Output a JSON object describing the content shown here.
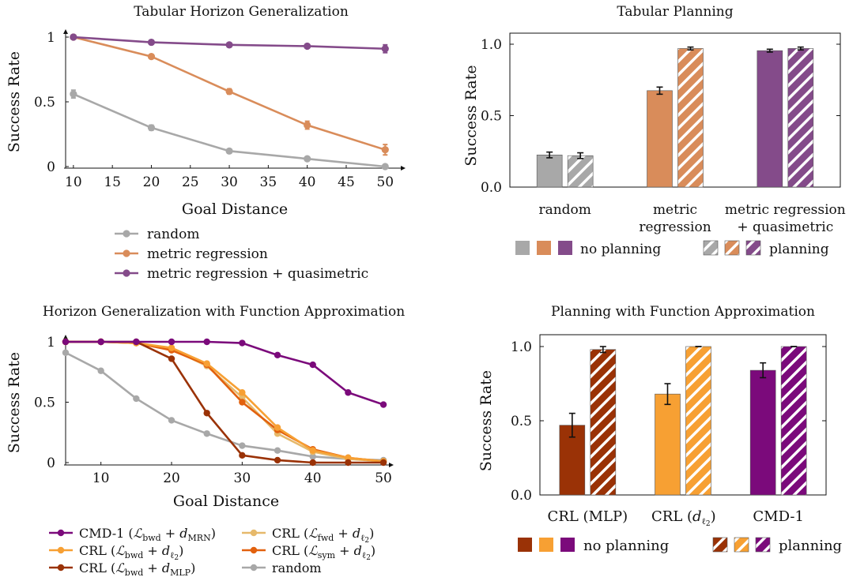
{
  "colors": {
    "gray": "#a8a8a8",
    "tan": "#d98c5a",
    "purple": "#844b8a",
    "cmd": "#7b0a7b",
    "crl_bwd_l2": "#f7a033",
    "crl_bwd_mlp": "#9a3206",
    "crl_fwd_l2": "#e6b96b",
    "crl_sym_l2": "#e2610e",
    "random2": "#a8a8a8"
  },
  "chart_data": [
    {
      "type": "line",
      "title": "Tabular Horizon Generalization",
      "xlabel": "Goal Distance",
      "ylabel": "Success Rate",
      "xlim": [
        9,
        52
      ],
      "ylim": [
        0,
        1
      ],
      "xticks": [
        "10",
        "15",
        "20",
        "25",
        "30",
        "35",
        "40",
        "45",
        "50"
      ],
      "yticks": [
        "0",
        "0.5",
        "1"
      ],
      "x": [
        10,
        20,
        30,
        40,
        50
      ],
      "series": [
        {
          "name": "random",
          "values": [
            0.56,
            0.3,
            0.12,
            0.06,
            0.0
          ],
          "err": [
            0.03,
            0.02,
            0.01,
            0.01,
            0.01
          ],
          "color_key": "gray"
        },
        {
          "name": "metric regression",
          "values": [
            1.0,
            0.85,
            0.58,
            0.32,
            0.13
          ],
          "err": [
            0.0,
            0.015,
            0.02,
            0.03,
            0.04
          ],
          "color_key": "tan"
        },
        {
          "name": "metric regression + quasimetric",
          "values": [
            1.0,
            0.96,
            0.94,
            0.93,
            0.91
          ],
          "err": [
            0.0,
            0.01,
            0.01,
            0.01,
            0.03
          ],
          "color_key": "purple"
        }
      ]
    },
    {
      "type": "bar",
      "title": "Tabular Planning",
      "ylabel": "Success Rate",
      "ylim": [
        0,
        1.0
      ],
      "yticks": [
        "0.0",
        "0.5",
        "1.0"
      ],
      "categories": [
        [
          "random"
        ],
        [
          "metric",
          "regression"
        ],
        [
          "metric regression",
          "+ quasimetric"
        ]
      ],
      "series": [
        {
          "name": "no planning",
          "values": [
            0.225,
            0.675,
            0.955
          ],
          "err": [
            0.02,
            0.025,
            0.01
          ]
        },
        {
          "name": "planning",
          "values": [
            0.22,
            0.97,
            0.97
          ],
          "err": [
            0.02,
            0.01,
            0.01
          ]
        }
      ],
      "category_color_keys": [
        "gray",
        "tan",
        "purple"
      ],
      "legend": {
        "no_planning": "no planning",
        "planning": "planning"
      }
    },
    {
      "type": "line",
      "title": "Horizon Generalization with Function Approximation",
      "xlabel": "Goal Distance",
      "ylabel": "Success Rate",
      "xlim": [
        5,
        51
      ],
      "ylim": [
        0,
        1
      ],
      "xticks": [
        "10",
        "20",
        "30",
        "40",
        "50"
      ],
      "yticks": [
        "0",
        "0.5",
        "1"
      ],
      "x": [
        5,
        10,
        15,
        20,
        25,
        30,
        35,
        40,
        45,
        50
      ],
      "series": [
        {
          "name": "CMD-1",
          "values": [
            1.0,
            1.0,
            1.0,
            1.0,
            1.0,
            0.99,
            0.89,
            0.81,
            0.58,
            0.48
          ],
          "color_key": "cmd"
        },
        {
          "name": "CRL bwd l2",
          "values": [
            1.0,
            1.0,
            0.99,
            0.95,
            0.82,
            0.58,
            0.29,
            0.1,
            0.04,
            0.01
          ],
          "color_key": "crl_bwd_l2"
        },
        {
          "name": "CRL bwd MLP",
          "values": [
            1.0,
            1.0,
            1.0,
            0.86,
            0.41,
            0.06,
            0.02,
            0.0,
            0.0,
            0.0
          ],
          "color_key": "crl_bwd_mlp"
        },
        {
          "name": "CRL fwd l2",
          "values": [
            1.0,
            1.0,
            0.99,
            0.94,
            0.8,
            0.54,
            0.24,
            0.09,
            0.03,
            0.01
          ],
          "color_key": "crl_fwd_l2"
        },
        {
          "name": "CRL sym l2",
          "values": [
            1.0,
            1.0,
            0.99,
            0.93,
            0.81,
            0.5,
            0.27,
            0.11,
            0.04,
            0.01
          ],
          "color_key": "crl_sym_l2"
        },
        {
          "name": "random",
          "values": [
            0.91,
            0.76,
            0.53,
            0.35,
            0.24,
            0.14,
            0.1,
            0.05,
            0.03,
            0.02
          ],
          "color_key": "random2"
        }
      ],
      "legend": [
        {
          "key": "cmd",
          "pre": "CMD-1 (",
          "mid": " + ",
          "sub_l": "bwd",
          "sub_d": "MRN",
          "kind": "mrn"
        },
        {
          "key": "crl_fwd_l2",
          "pre": "CRL (",
          "mid": " + ",
          "sub_l": "fwd",
          "kind": "l2"
        },
        {
          "key": "crl_bwd_l2",
          "pre": "CRL (",
          "mid": " + ",
          "sub_l": "bwd",
          "kind": "l2"
        },
        {
          "key": "crl_sym_l2",
          "pre": "CRL (",
          "mid": " + ",
          "sub_l": "sym",
          "kind": "l2"
        },
        {
          "key": "crl_bwd_mlp",
          "pre": "CRL (",
          "mid": " + ",
          "sub_l": "bwd",
          "sub_d": "MLP",
          "kind": "mlp"
        },
        {
          "key": "random2",
          "plain": "random",
          "kind": "plain"
        }
      ]
    },
    {
      "type": "bar",
      "title": "Planning with Function Approximation",
      "ylabel": "Success Rate",
      "ylim": [
        0,
        1.0
      ],
      "yticks": [
        "0.0",
        "0.5",
        "1.0"
      ],
      "categories": [
        "CRL (MLP)",
        "CRL (d",
        "CMD-1"
      ],
      "series": [
        {
          "name": "no planning",
          "values": [
            0.47,
            0.68,
            0.84
          ],
          "err": [
            0.08,
            0.07,
            0.05
          ]
        },
        {
          "name": "planning",
          "values": [
            0.98,
            1.0,
            1.0
          ],
          "err": [
            0.02,
            0.0,
            0.0
          ]
        }
      ],
      "category_color_keys": [
        "crl_bwd_mlp",
        "crl_bwd_l2",
        "cmd"
      ],
      "legend": {
        "no_planning": "no planning",
        "planning": "planning"
      }
    }
  ]
}
